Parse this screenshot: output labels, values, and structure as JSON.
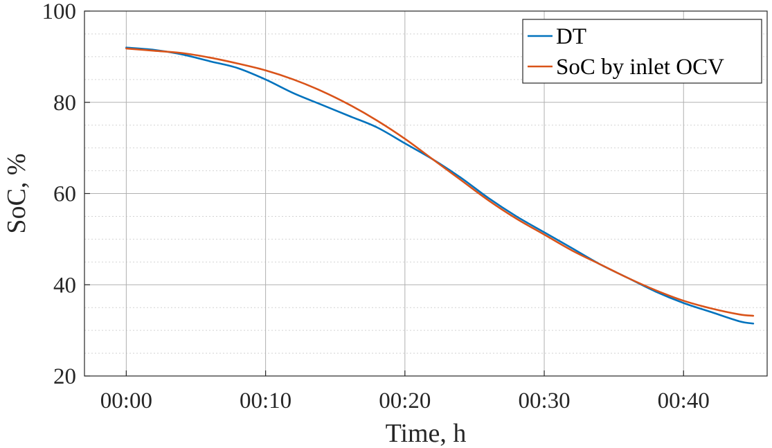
{
  "chart_data": {
    "type": "line",
    "title": "",
    "xlabel": "Time, h",
    "ylabel": "SoC, %",
    "xlim": [
      -3,
      46
    ],
    "ylim": [
      20,
      100
    ],
    "x_tick_values": [
      0,
      10,
      20,
      30,
      40
    ],
    "x_tick_labels": [
      "00:00",
      "00:10",
      "00:20",
      "00:30",
      "00:40"
    ],
    "y_ticks": [
      20,
      40,
      60,
      80,
      100
    ],
    "y_minor_step": 5,
    "x_unit": "minutes",
    "grid": true,
    "legend_position": "top-right",
    "series": [
      {
        "name": "DT",
        "color": "#0072BD",
        "x": [
          0,
          2,
          4,
          6,
          8,
          10,
          12,
          14,
          16,
          18,
          20,
          22,
          24,
          26,
          28,
          30,
          32,
          34,
          36,
          38,
          40,
          42,
          44,
          45
        ],
        "y": [
          92,
          91.5,
          90.5,
          89,
          87.5,
          85,
          82,
          79.5,
          77,
          74.5,
          71,
          67.5,
          63.5,
          59,
          55,
          51.5,
          48,
          44.5,
          41.5,
          38.5,
          36,
          34,
          32,
          31.5
        ]
      },
      {
        "name": "SoC by inlet OCV",
        "color": "#D95319",
        "x": [
          0,
          2,
          4,
          6,
          8,
          10,
          12,
          14,
          16,
          18,
          20,
          22,
          24,
          26,
          28,
          30,
          32,
          34,
          36,
          38,
          40,
          42,
          44,
          45
        ],
        "y": [
          91.8,
          91.3,
          90.8,
          89.8,
          88.5,
          87,
          85,
          82.5,
          79.5,
          76,
          72,
          67.5,
          63,
          58.5,
          54.5,
          51,
          47.5,
          44.5,
          41.5,
          38.8,
          36.5,
          34.8,
          33.5,
          33.2
        ]
      }
    ]
  }
}
